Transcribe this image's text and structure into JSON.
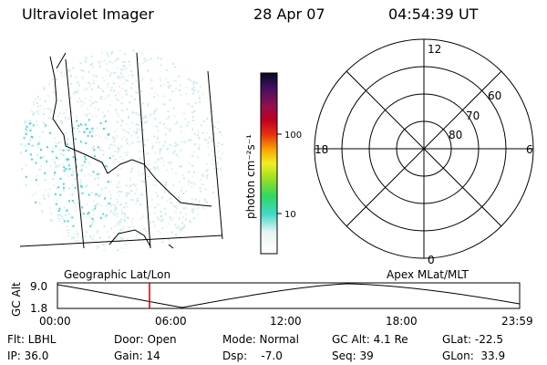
{
  "header": {
    "title": "Ultraviolet Imager",
    "date": "28 Apr 07",
    "time": "04:54:39 UT"
  },
  "colorbar": {
    "unit_label": "photon cm⁻²s⁻¹",
    "ticks": [
      "100",
      "10"
    ]
  },
  "polar_plot": {
    "mlt_labels": {
      "top": "12",
      "left": "18",
      "right": "6",
      "bottom": "0"
    },
    "lat_labels": [
      "60",
      "70",
      "80"
    ]
  },
  "timeline": {
    "left_label": "Geographic Lat/Lon",
    "right_label": "Apex MLat/MLT",
    "y_axis_label": "GC Alt",
    "y_ticks": [
      "9.0",
      "1.8"
    ],
    "x_ticks": [
      "00:00",
      "06:00",
      "12:00",
      "18:00",
      "23:59"
    ]
  },
  "info": {
    "row1": [
      {
        "label": "Flt: LBHL"
      },
      {
        "label": "Door: Open"
      },
      {
        "label": "Mode: Normal"
      },
      {
        "label": "GC Alt: 4.1 Re"
      },
      {
        "label": "GLat: -22.5"
      }
    ],
    "row2": [
      {
        "label": "IP: 36.0"
      },
      {
        "label": "Gain: 14"
      },
      {
        "label": "Dsp:    -7.0"
      },
      {
        "label": "Seq: 39"
      },
      {
        "label": "GLon:  33.9"
      }
    ]
  },
  "colors": {
    "speckle": "#c8ecec",
    "speckle_bright": "#40d8d8",
    "marker": "#cc0000"
  }
}
